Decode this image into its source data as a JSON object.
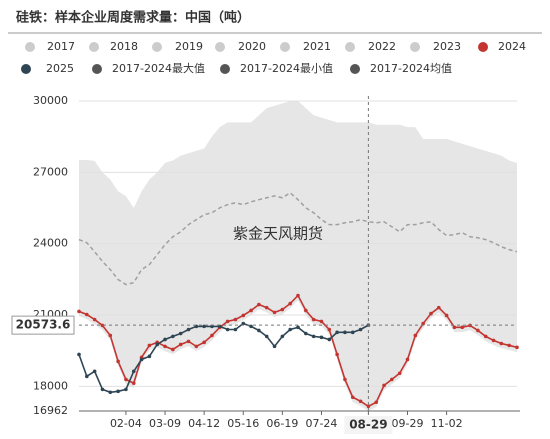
{
  "chart_data": {
    "type": "line",
    "title": "硅铁：样本企业周度需求量：中国（吨）",
    "watermark": "紫金天风期货",
    "inactive_legend": [
      "2017",
      "2018",
      "2019",
      "2020",
      "2021",
      "2022",
      "2023"
    ],
    "inactive_color": "#cccccc",
    "categories": [
      null,
      null,
      null,
      null,
      null,
      null,
      "02-04",
      null,
      null,
      null,
      null,
      "03-09",
      null,
      null,
      null,
      null,
      "04-12",
      null,
      null,
      null,
      null,
      "05-16",
      null,
      null,
      null,
      null,
      "06-19",
      null,
      null,
      null,
      null,
      "07-24",
      null,
      null,
      null,
      null,
      null,
      "08-29",
      null,
      null,
      null,
      null,
      "09-29",
      null,
      null,
      null,
      null,
      "11-02",
      null,
      null,
      null,
      null,
      null,
      null,
      null,
      null,
      null
    ],
    "series": [
      {
        "name": "2024",
        "color": "#c23531",
        "values": [
          21150,
          21020,
          20810,
          20560,
          20140,
          19050,
          18290,
          18130,
          19220,
          19720,
          19850,
          19680,
          19550,
          19760,
          19890,
          19680,
          19850,
          20140,
          20480,
          20730,
          20810,
          20980,
          21190,
          21440,
          21310,
          21110,
          21230,
          21480,
          21820,
          21190,
          20810,
          20730,
          20390,
          19340,
          18290,
          17540,
          17370,
          17160,
          17330,
          18040,
          18290,
          18550,
          19130,
          20140,
          20640,
          21060,
          21310,
          20980,
          20480,
          20480,
          20560,
          20350,
          20100,
          19930,
          19800,
          19720,
          19640
        ]
      },
      {
        "name": "2025",
        "color": "#2f4554",
        "values": [
          19340,
          18420,
          18630,
          17870,
          17750,
          17790,
          17870,
          18630,
          19130,
          19260,
          19760,
          19970,
          20100,
          20220,
          20390,
          20520,
          20520,
          20520,
          20520,
          20390,
          20390,
          20640,
          20520,
          20350,
          20100,
          19680,
          20100,
          20390,
          20480,
          20220,
          20100,
          20060,
          19970,
          20270,
          20270,
          20270,
          20390,
          20573.6,
          null,
          null,
          null,
          null,
          null,
          null,
          null,
          null,
          null,
          null,
          null,
          null,
          null,
          null,
          null,
          null,
          null,
          null,
          null
        ]
      },
      {
        "name": "2017-2024最大值",
        "color": "#555555",
        "band": "upper",
        "values": [
          27520,
          27520,
          27480,
          27000,
          26700,
          26200,
          26000,
          25500,
          26200,
          26700,
          27000,
          27400,
          27500,
          27700,
          27800,
          27900,
          28000,
          28500,
          28900,
          29100,
          29100,
          29100,
          29100,
          29400,
          29700,
          29800,
          29900,
          30000,
          30000,
          29700,
          29400,
          29300,
          29200,
          29100,
          29100,
          29100,
          29100,
          29100,
          29000,
          29000,
          29000,
          29000,
          28900,
          28900,
          28400,
          28400,
          28400,
          28400,
          28300,
          28200,
          28100,
          28000,
          27900,
          27800,
          27700,
          27500,
          27400
        ]
      },
      {
        "name": "2017-2024最小值",
        "color": "#555555",
        "band": "lower",
        "values": [
          20950,
          20820,
          20610,
          20360,
          19940,
          18850,
          18090,
          17930,
          19020,
          19520,
          19650,
          19480,
          19350,
          19560,
          19690,
          19480,
          19650,
          19940,
          20280,
          20530,
          20610,
          20780,
          20990,
          21240,
          21110,
          20910,
          21030,
          21280,
          21620,
          20990,
          20610,
          20530,
          20190,
          19140,
          18090,
          17340,
          17170,
          16962,
          17130,
          17840,
          18090,
          18350,
          18930,
          19940,
          20440,
          20860,
          21110,
          20780,
          20280,
          20280,
          20360,
          20150,
          19900,
          19730,
          19600,
          19520,
          19440
        ]
      },
      {
        "name": "2017-2024均值",
        "color": "#555555",
        "line_color": "#a0a0a0",
        "dash": true,
        "values": [
          24170,
          24040,
          23660,
          23250,
          22910,
          22490,
          22280,
          22360,
          22910,
          23120,
          23540,
          23960,
          24290,
          24500,
          24800,
          25010,
          25220,
          25300,
          25510,
          25640,
          25720,
          25640,
          25760,
          25850,
          25930,
          26010,
          25930,
          26140,
          25850,
          25510,
          25300,
          25010,
          24800,
          24800,
          24880,
          24920,
          25010,
          24920,
          24880,
          24920,
          24710,
          24500,
          24800,
          24800,
          24880,
          24920,
          24590,
          24340,
          24380,
          24460,
          24290,
          24250,
          24170,
          24040,
          23870,
          23750,
          23660
        ]
      }
    ],
    "band_color": "#e6e6e6",
    "ylim": [
      16962,
      30000
    ],
    "yticks": [
      16962,
      18000,
      21000,
      24000,
      27000,
      30000
    ],
    "grid": true,
    "crosshair": {
      "series": 1,
      "index": 37
    }
  }
}
